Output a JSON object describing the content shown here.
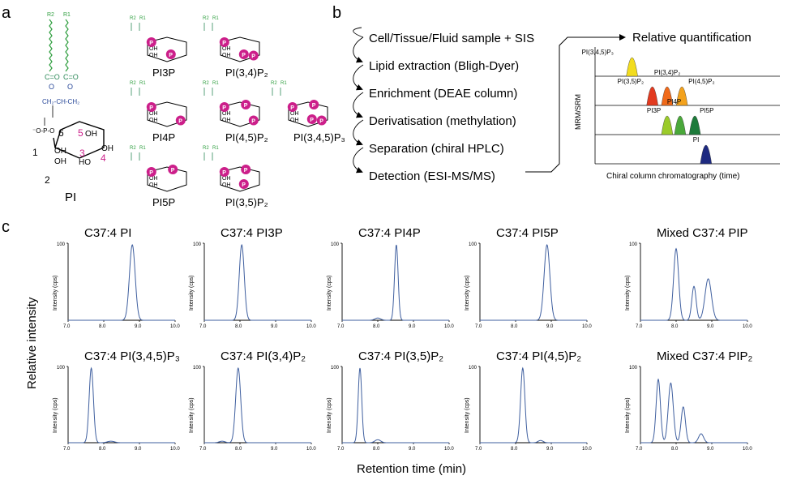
{
  "colors": {
    "trace": "#3f5f9f",
    "phosphate": "#cc1f8a",
    "chain": "#2e9e3e",
    "oxygen": "#2e8a5a",
    "blue": "#2b4a9a",
    "axis": "#000000"
  },
  "panel_a": {
    "label": "a",
    "pi_chain_labels": [
      "R2",
      "R1"
    ],
    "pi_ring_numbers": [
      "1",
      "2",
      "3",
      "4",
      "5",
      "6"
    ],
    "pi_name": "PI",
    "pi_hydroxyl": "OH",
    "pi_hydroxyl_ho": "HO",
    "phosphate_mark": "P",
    "species": [
      {
        "label": "PI3P"
      },
      {
        "label": "PI(3,4)P₂"
      },
      {
        "label": "PI4P"
      },
      {
        "label": "PI(4,5)P₂"
      },
      {
        "label": "PI(3,4,5)P₃"
      },
      {
        "label": "PI5P"
      },
      {
        "label": "PI(3,5)P₂"
      }
    ]
  },
  "panel_b": {
    "label": "b",
    "steps": [
      "Cell/Tissue/Fluid sample + SIS",
      "Lipid extraction (Bligh-Dyer)",
      "Enrichment (DEAE column)",
      "Derivatisation (methylation)",
      "Separation (chiral HPLC)",
      "Detection (ESI-MS/MS)"
    ],
    "result_title": "Relative quantification",
    "y_label": "MRM/SRM",
    "x_label": "Chiral column chromatography (time)",
    "rows": [
      {
        "peaks": [
          {
            "label": "PI(3,4,5)P₃",
            "position": 0.2,
            "color": "#f2dc1e"
          }
        ]
      },
      {
        "peaks": [
          {
            "label": "PI(3,5)P₂",
            "position": 0.31,
            "color": "#e23a1f"
          },
          {
            "label": "PI(3,4)P₂",
            "position": 0.39,
            "color": "#f06a1a"
          },
          {
            "label": "PI(4,5)P₂",
            "position": 0.47,
            "color": "#f3a21d"
          }
        ]
      },
      {
        "peaks": [
          {
            "label": "PI3P",
            "position": 0.39,
            "color": "#9bcb2a"
          },
          {
            "label": "PI4P",
            "position": 0.46,
            "color": "#4aa83a"
          },
          {
            "label": "PI5P",
            "position": 0.54,
            "color": "#1d7a3a"
          }
        ]
      },
      {
        "peaks": [
          {
            "label": "PI",
            "position": 0.6,
            "color": "#1e2a80"
          }
        ]
      }
    ]
  },
  "panel_c": {
    "label": "c",
    "y_label": "Relative intensity",
    "x_label": "Retention time (min)",
    "axis_label": "Intensity (cps)"
  },
  "chart_data": [
    {
      "type": "line",
      "title": "C37:4 PI",
      "ylabel": "Intensity (cps)",
      "xlim": [
        7.0,
        10.0
      ],
      "ylim": [
        0,
        100
      ],
      "xticks": [
        "7.0",
        "8.0",
        "9.0",
        "10.0"
      ],
      "yticks": [
        "100"
      ],
      "peaks": [
        {
          "x": 8.8,
          "height": 100,
          "width": 0.08
        }
      ]
    },
    {
      "type": "line",
      "title": "C37:4 PI3P",
      "ylabel": "Intensity (cps)",
      "xlim": [
        7.0,
        10.0
      ],
      "ylim": [
        0,
        100
      ],
      "xticks": [
        "7.0",
        "8.0",
        "9.0",
        "10.0"
      ],
      "yticks": [
        "100"
      ],
      "peaks": [
        {
          "x": 8.05,
          "height": 100,
          "width": 0.07
        }
      ]
    },
    {
      "type": "line",
      "title": "C37:4 PI4P",
      "ylabel": "Intensity (cps)",
      "xlim": [
        7.0,
        10.0
      ],
      "ylim": [
        0,
        100
      ],
      "xticks": [
        "7.0",
        "8.0",
        "9.0",
        "10.0"
      ],
      "yticks": [
        "100"
      ],
      "peaks": [
        {
          "x": 8.52,
          "height": 100,
          "width": 0.05
        },
        {
          "x": 8.0,
          "height": 3,
          "width": 0.08
        }
      ]
    },
    {
      "type": "line",
      "title": "C37:4 PI5P",
      "ylabel": "Intensity (cps)",
      "xlim": [
        7.0,
        10.0
      ],
      "ylim": [
        0,
        100
      ],
      "xticks": [
        "7.0",
        "8.0",
        "9.0",
        "10.0"
      ],
      "yticks": [
        "100"
      ],
      "peaks": [
        {
          "x": 8.88,
          "height": 100,
          "width": 0.08
        }
      ]
    },
    {
      "type": "line",
      "title": "Mixed C37:4  PIP",
      "ylabel": "Intensity (cps)",
      "xlim": [
        7.0,
        10.0
      ],
      "ylim": [
        0,
        100
      ],
      "xticks": [
        "7.0",
        "8.0",
        "9.0",
        "10.0"
      ],
      "yticks": [
        "100"
      ],
      "peaks": [
        {
          "x": 8.0,
          "height": 95,
          "width": 0.07
        },
        {
          "x": 8.5,
          "height": 45,
          "width": 0.06
        },
        {
          "x": 8.9,
          "height": 55,
          "width": 0.09
        }
      ]
    },
    {
      "type": "line",
      "title": "C37:4 PI(3,4,5)P₃",
      "ylabel": "Intensity (cps)",
      "xlim": [
        7.0,
        10.0
      ],
      "ylim": [
        0,
        100
      ],
      "xticks": [
        "7.0",
        "8.0",
        "9.0",
        "10.0"
      ],
      "yticks": [
        "100"
      ],
      "peaks": [
        {
          "x": 7.65,
          "height": 100,
          "width": 0.06
        },
        {
          "x": 8.2,
          "height": 2,
          "width": 0.1
        }
      ]
    },
    {
      "type": "line",
      "title": "C37:4 PI(3,4)P₂",
      "ylabel": "Intensity (cps)",
      "xlim": [
        7.0,
        10.0
      ],
      "ylim": [
        0,
        100
      ],
      "xticks": [
        "7.0",
        "8.0",
        "9.0",
        "10.0"
      ],
      "yticks": [
        "100"
      ],
      "peaks": [
        {
          "x": 7.95,
          "height": 100,
          "width": 0.07
        },
        {
          "x": 7.5,
          "height": 2,
          "width": 0.08
        }
      ]
    },
    {
      "type": "line",
      "title": "C37:4 PI(3,5)P₂",
      "ylabel": "Intensity (cps)",
      "xlim": [
        7.0,
        10.0
      ],
      "ylim": [
        0,
        100
      ],
      "xticks": [
        "7.0",
        "8.0",
        "9.0",
        "10.0"
      ],
      "yticks": [
        "100"
      ],
      "peaks": [
        {
          "x": 7.5,
          "height": 100,
          "width": 0.05
        },
        {
          "x": 8.0,
          "height": 4,
          "width": 0.08
        }
      ]
    },
    {
      "type": "line",
      "title": "C37:4 PI(4,5)P₂",
      "ylabel": "Intensity (cps)",
      "xlim": [
        7.0,
        10.0
      ],
      "ylim": [
        0,
        100
      ],
      "xticks": [
        "7.0",
        "8.0",
        "9.0",
        "10.0"
      ],
      "yticks": [
        "100"
      ],
      "peaks": [
        {
          "x": 8.2,
          "height": 100,
          "width": 0.06
        },
        {
          "x": 8.7,
          "height": 3,
          "width": 0.07
        }
      ]
    },
    {
      "type": "line",
      "title": "Mixed C37:4 PIP₂",
      "ylabel": "Intensity (cps)",
      "xlim": [
        7.0,
        10.0
      ],
      "ylim": [
        0,
        100
      ],
      "xticks": [
        "7.0",
        "8.0",
        "9.0",
        "10.0"
      ],
      "yticks": [
        "100"
      ],
      "peaks": [
        {
          "x": 7.5,
          "height": 85,
          "width": 0.06
        },
        {
          "x": 7.85,
          "height": 80,
          "width": 0.07
        },
        {
          "x": 8.2,
          "height": 48,
          "width": 0.06
        },
        {
          "x": 8.7,
          "height": 12,
          "width": 0.07
        }
      ]
    }
  ]
}
